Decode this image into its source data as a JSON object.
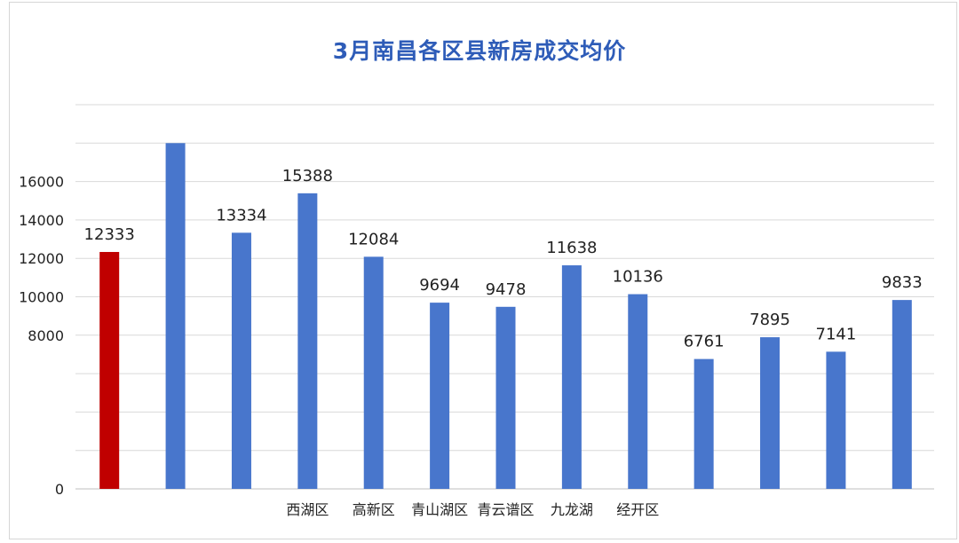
{
  "chart_data": {
    "type": "bar",
    "title": "3月南昌各区县新房成交均价",
    "categories": [
      "",
      "",
      "",
      "西湖区",
      "高新区",
      "青山湖区",
      "青云谱区",
      "九龙湖",
      "经开区",
      "",
      "",
      "",
      ""
    ],
    "values": [
      12333,
      18000,
      13334,
      15388,
      12084,
      9694,
      9478,
      11638,
      10136,
      6761,
      7895,
      7141,
      9833
    ],
    "value_labels": [
      "12333",
      "",
      "13334",
      "15388",
      "12084",
      "9694",
      "9478",
      "11638",
      "10136",
      "6761",
      "7895",
      "7141",
      "9833"
    ],
    "ylim": [
      0,
      20000
    ],
    "yticks": [
      "0",
      "",
      "",
      "",
      "8000",
      "10000",
      "12000",
      "14000",
      "16000",
      "",
      ""
    ],
    "grid": true,
    "colors": {
      "bar": "#4876cc",
      "highlight": "#c00000",
      "grid": "#d9d9d9",
      "title": "#2e5cb8"
    },
    "highlight_index": 0
  }
}
